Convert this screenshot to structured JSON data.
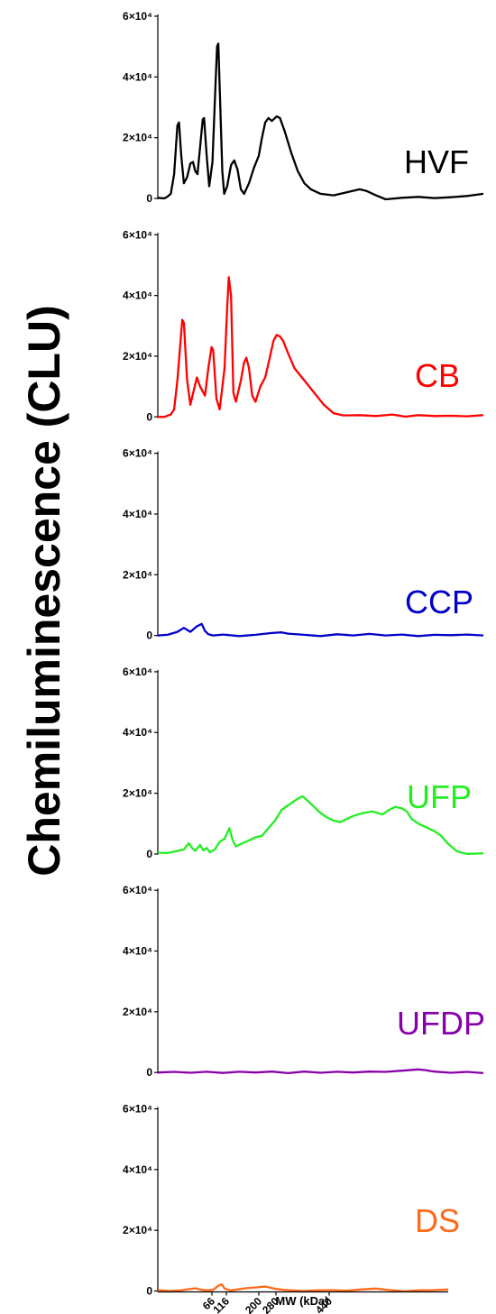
{
  "chart_data": {
    "type": "line",
    "ylabel": "Chemiluminescence (CLU)",
    "xlabel": "MW (kDa)",
    "x_ticks": [
      "66",
      "116",
      "200",
      "280",
      "440"
    ],
    "y_ticks": [
      {
        "value": 0,
        "label": "0"
      },
      {
        "value": 20000,
        "label": "2×10⁴"
      },
      {
        "value": 40000,
        "label": "4×10⁴"
      },
      {
        "value": 60000,
        "label": "6×10⁴"
      }
    ],
    "ylim": [
      0,
      60000
    ],
    "grid": false,
    "series": [
      {
        "name": "HVF",
        "color": "#000000",
        "points": [
          [
            0,
            200
          ],
          [
            2,
            0
          ],
          [
            3,
            600
          ],
          [
            4,
            1500
          ],
          [
            5,
            8000
          ],
          [
            6,
            24000
          ],
          [
            6.5,
            25000
          ],
          [
            7.2,
            14000
          ],
          [
            8,
            5000
          ],
          [
            9,
            7000
          ],
          [
            10,
            11500
          ],
          [
            10.8,
            12000
          ],
          [
            11.5,
            9000
          ],
          [
            12.2,
            8000
          ],
          [
            13,
            17000
          ],
          [
            13.8,
            26000
          ],
          [
            14.2,
            26500
          ],
          [
            15,
            14000
          ],
          [
            15.8,
            4000
          ],
          [
            16.8,
            12000
          ],
          [
            17.6,
            34000
          ],
          [
            18.2,
            50000
          ],
          [
            18.6,
            51000
          ],
          [
            19.2,
            30000
          ],
          [
            19.8,
            9000
          ],
          [
            20.4,
            1500
          ],
          [
            21.3,
            4000
          ],
          [
            22.5,
            11000
          ],
          [
            23.5,
            12500
          ],
          [
            24.5,
            9500
          ],
          [
            25.5,
            3000
          ],
          [
            26.5,
            1500
          ],
          [
            28,
            5000
          ],
          [
            29.5,
            10000
          ],
          [
            31,
            14000
          ],
          [
            32,
            20000
          ],
          [
            33,
            25000
          ],
          [
            34,
            26500
          ],
          [
            35,
            25500
          ],
          [
            36.5,
            27000
          ],
          [
            37.5,
            26500
          ],
          [
            39,
            22000
          ],
          [
            41,
            15000
          ],
          [
            43,
            9000
          ],
          [
            45,
            5000
          ],
          [
            47,
            3000
          ],
          [
            50,
            1500
          ],
          [
            54,
            1000
          ],
          [
            58,
            2000
          ],
          [
            62,
            3000
          ],
          [
            64,
            2500
          ],
          [
            67,
            1000
          ],
          [
            70,
            -300
          ],
          [
            75,
            200
          ],
          [
            80,
            500
          ],
          [
            85,
            100
          ],
          [
            90,
            400
          ],
          [
            95,
            800
          ],
          [
            100,
            1500
          ]
        ]
      },
      {
        "name": "CB",
        "color": "#ff0000",
        "points": [
          [
            0,
            0
          ],
          [
            2,
            0
          ],
          [
            4,
            800
          ],
          [
            5,
            2500
          ],
          [
            6,
            12000
          ],
          [
            7.5,
            32000
          ],
          [
            8,
            31000
          ],
          [
            9,
            12000
          ],
          [
            10,
            4000
          ],
          [
            12,
            13000
          ],
          [
            13,
            10000
          ],
          [
            14.5,
            7000
          ],
          [
            15.5,
            16000
          ],
          [
            16.5,
            23000
          ],
          [
            17,
            22000
          ],
          [
            18,
            6000
          ],
          [
            19,
            2500
          ],
          [
            20.5,
            16000
          ],
          [
            21.3,
            36000
          ],
          [
            21.8,
            46000
          ],
          [
            22.5,
            40000
          ],
          [
            23.2,
            8000
          ],
          [
            24,
            5000
          ],
          [
            25.5,
            12000
          ],
          [
            26.5,
            18000
          ],
          [
            27.2,
            19500
          ],
          [
            28,
            16000
          ],
          [
            29,
            7000
          ],
          [
            30,
            5000
          ],
          [
            31.5,
            10000
          ],
          [
            33,
            13000
          ],
          [
            34.5,
            20000
          ],
          [
            35.5,
            25000
          ],
          [
            36.5,
            27000
          ],
          [
            37.5,
            26500
          ],
          [
            38.5,
            25000
          ],
          [
            40,
            21000
          ],
          [
            42,
            16000
          ],
          [
            45,
            12000
          ],
          [
            48,
            8000
          ],
          [
            51,
            4000
          ],
          [
            54,
            1200
          ],
          [
            57,
            500
          ],
          [
            62,
            600
          ],
          [
            67,
            300
          ],
          [
            72,
            800
          ],
          [
            76,
            100
          ],
          [
            80,
            600
          ],
          [
            85,
            300
          ],
          [
            90,
            400
          ],
          [
            95,
            200
          ],
          [
            100,
            600
          ]
        ]
      },
      {
        "name": "CCP",
        "color": "#0000c8",
        "points": [
          [
            0,
            0
          ],
          [
            3,
            200
          ],
          [
            6,
            1200
          ],
          [
            8,
            2500
          ],
          [
            10,
            1200
          ],
          [
            12,
            3000
          ],
          [
            13.5,
            3800
          ],
          [
            14.5,
            1500
          ],
          [
            15.5,
            400
          ],
          [
            17,
            0
          ],
          [
            20,
            300
          ],
          [
            25,
            -200
          ],
          [
            30,
            200
          ],
          [
            35,
            800
          ],
          [
            38,
            1000
          ],
          [
            40,
            600
          ],
          [
            45,
            200
          ],
          [
            50,
            -200
          ],
          [
            55,
            400
          ],
          [
            60,
            0
          ],
          [
            65,
            500
          ],
          [
            70,
            0
          ],
          [
            75,
            300
          ],
          [
            80,
            -200
          ],
          [
            85,
            200
          ],
          [
            90,
            100
          ],
          [
            95,
            300
          ],
          [
            100,
            0
          ]
        ]
      },
      {
        "name": "UFP",
        "color": "#22ee22",
        "points": [
          [
            0,
            400
          ],
          [
            3,
            300
          ],
          [
            6,
            1000
          ],
          [
            8,
            1500
          ],
          [
            9.5,
            3500
          ],
          [
            10.5,
            2000
          ],
          [
            11.5,
            1000
          ],
          [
            13,
            3000
          ],
          [
            14,
            1200
          ],
          [
            15,
            2000
          ],
          [
            16,
            500
          ],
          [
            17.5,
            1500
          ],
          [
            19,
            4000
          ],
          [
            20.5,
            5000
          ],
          [
            22,
            8500
          ],
          [
            23,
            4500
          ],
          [
            24,
            2500
          ],
          [
            26,
            3500
          ],
          [
            28,
            4500
          ],
          [
            30,
            5500
          ],
          [
            32,
            6000
          ],
          [
            34,
            8500
          ],
          [
            36,
            11000
          ],
          [
            38,
            14500
          ],
          [
            40,
            16000
          ],
          [
            42,
            17500
          ],
          [
            43.5,
            18500
          ],
          [
            44.5,
            19000
          ],
          [
            46,
            17500
          ],
          [
            48,
            15500
          ],
          [
            50,
            13500
          ],
          [
            52,
            12000
          ],
          [
            54,
            11000
          ],
          [
            56,
            10500
          ],
          [
            58,
            11500
          ],
          [
            60,
            12500
          ],
          [
            63,
            13500
          ],
          [
            66,
            14000
          ],
          [
            69,
            13000
          ],
          [
            71,
            14500
          ],
          [
            73,
            15500
          ],
          [
            75,
            15000
          ],
          [
            76.5,
            14000
          ],
          [
            78,
            11500
          ],
          [
            80,
            10000
          ],
          [
            83,
            8500
          ],
          [
            85,
            7500
          ],
          [
            87,
            6000
          ],
          [
            89,
            3500
          ],
          [
            92,
            800
          ],
          [
            95,
            0
          ],
          [
            100,
            200
          ]
        ]
      },
      {
        "name": "UFDP",
        "color": "#8800aa",
        "points": [
          [
            0,
            0
          ],
          [
            5,
            200
          ],
          [
            10,
            -100
          ],
          [
            15,
            250
          ],
          [
            20,
            -150
          ],
          [
            25,
            250
          ],
          [
            30,
            0
          ],
          [
            35,
            300
          ],
          [
            40,
            -200
          ],
          [
            45,
            300
          ],
          [
            50,
            -100
          ],
          [
            55,
            250
          ],
          [
            60,
            0
          ],
          [
            65,
            300
          ],
          [
            70,
            200
          ],
          [
            75,
            600
          ],
          [
            80,
            1000
          ],
          [
            82,
            800
          ],
          [
            85,
            300
          ],
          [
            90,
            -100
          ],
          [
            95,
            200
          ],
          [
            100,
            -200
          ]
        ]
      },
      {
        "name": "DS",
        "color": "#ff6a1a",
        "points": [
          [
            0,
            300
          ],
          [
            4,
            0
          ],
          [
            8,
            200
          ],
          [
            10,
            500
          ],
          [
            13,
            900
          ],
          [
            15,
            400
          ],
          [
            17,
            200
          ],
          [
            19,
            400
          ],
          [
            21,
            1800
          ],
          [
            22,
            2200
          ],
          [
            23,
            800
          ],
          [
            25,
            200
          ],
          [
            28,
            600
          ],
          [
            31,
            1000
          ],
          [
            34,
            1200
          ],
          [
            37,
            1500
          ],
          [
            40,
            800
          ],
          [
            43,
            400
          ],
          [
            46,
            200
          ],
          [
            50,
            0
          ],
          [
            55,
            200
          ],
          [
            60,
            300
          ],
          [
            65,
            100
          ],
          [
            70,
            500
          ],
          [
            75,
            800
          ],
          [
            80,
            300
          ],
          [
            85,
            -100
          ],
          [
            90,
            200
          ],
          [
            95,
            300
          ],
          [
            100,
            500
          ]
        ]
      }
    ]
  }
}
